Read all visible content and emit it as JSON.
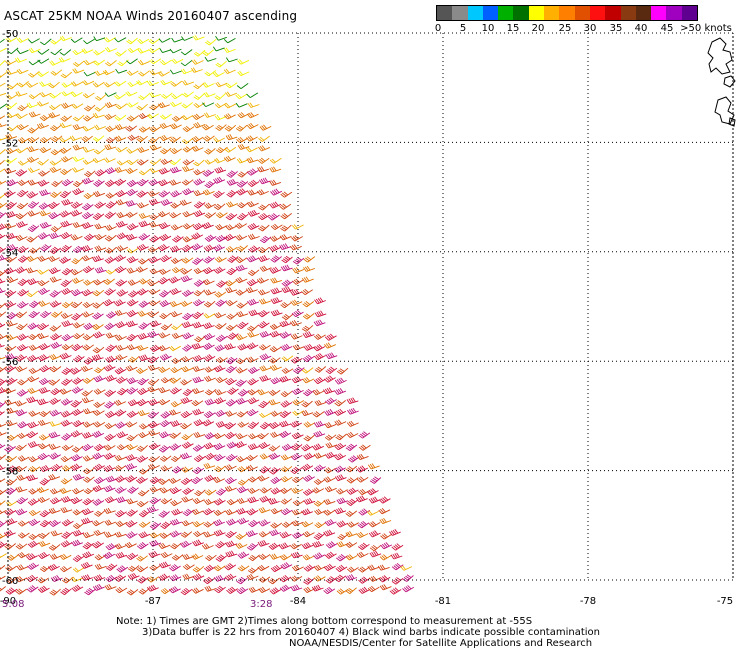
{
  "title": "ASCAT 25KM NOAA Winds 20160407 ascending",
  "legend": {
    "colors": [
      "#555555",
      "#8a8a8a",
      "#00c8ff",
      "#0060ff",
      "#00b000",
      "#007000",
      "#ffff00",
      "#ffb000",
      "#ff8000",
      "#e05000",
      "#ff1010",
      "#c00000",
      "#8a3a10",
      "#5a2a10",
      "#ff00ff",
      "#a000c0",
      "#600090"
    ],
    "ticks": [
      "0",
      "5",
      "10",
      "15",
      "20",
      "25",
      "30",
      "35",
      "40",
      "45",
      ">50 knots"
    ]
  },
  "map": {
    "lat_labels": [
      "-50",
      "-52",
      "-54",
      "-56",
      "-58",
      "-60"
    ],
    "lon_labels": [
      "-90",
      "-87",
      "-84",
      "-81",
      "-78",
      "-75"
    ],
    "time_labels": [
      "5:08",
      "3:28"
    ],
    "lat_range": [
      -60,
      -50
    ],
    "lon_range": [
      -90,
      -75
    ],
    "grid": true,
    "wind_color_scale": [
      {
        "max": 15,
        "color": "#008000"
      },
      {
        "max": 20,
        "color": "#f2f000"
      },
      {
        "max": 25,
        "color": "#f0b000"
      },
      {
        "max": 30,
        "color": "#e07000"
      },
      {
        "max": 35,
        "color": "#d04010"
      },
      {
        "max": 40,
        "color": "#d0103a"
      },
      {
        "max": 99,
        "color": "#c0107a"
      }
    ]
  },
  "notes": {
    "line1": "Note: 1) Times are GMT 2)Times along bottom correspond to measurement at -55S",
    "line2": "3)Data buffer is 22 hrs from 20160407 4) Black wind barbs indicate possible contamination",
    "line3": "NOAA/NESDIS/Center for Satellite Applications and Research"
  }
}
